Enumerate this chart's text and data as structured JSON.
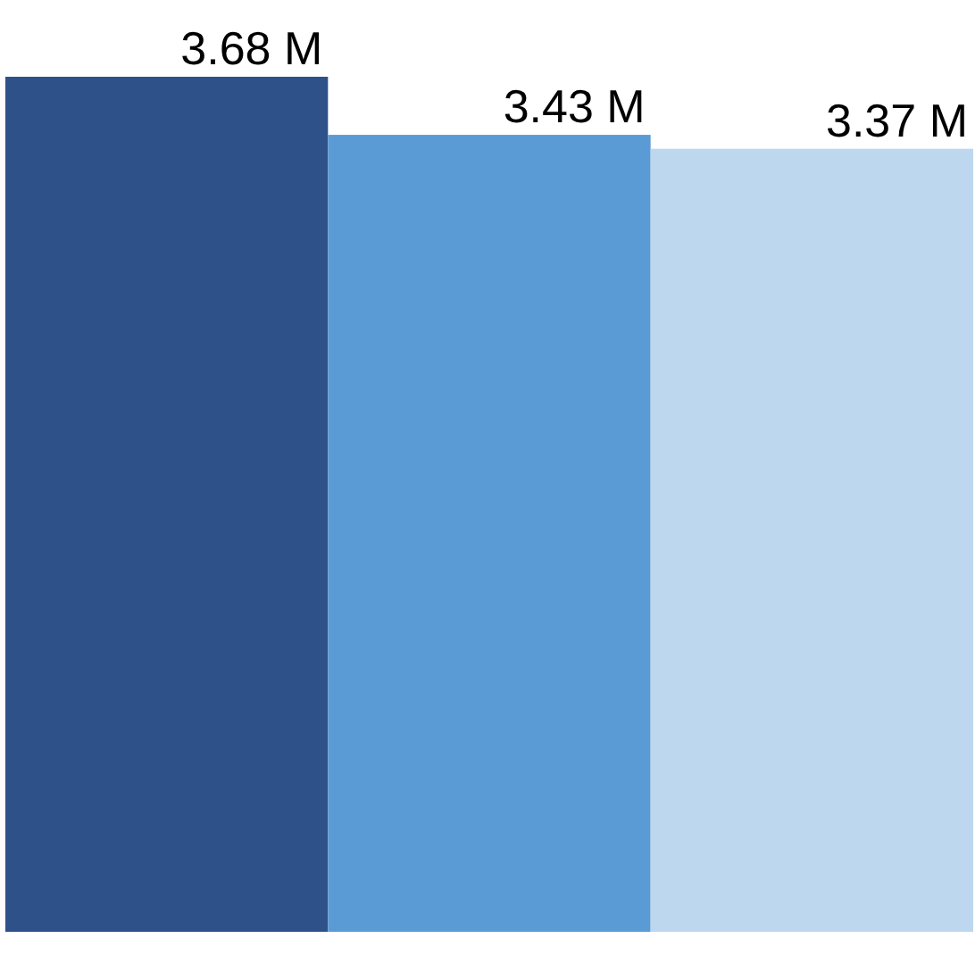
{
  "chart_data": {
    "type": "bar",
    "categories": [
      null,
      null,
      null
    ],
    "values": [
      3.68,
      3.43,
      3.37
    ],
    "value_labels": [
      "3.68 M",
      "3.43 M",
      "3.37 M"
    ],
    "colors": [
      "#2f5189",
      "#5b9bd5",
      "#bdd7ee"
    ]
  }
}
